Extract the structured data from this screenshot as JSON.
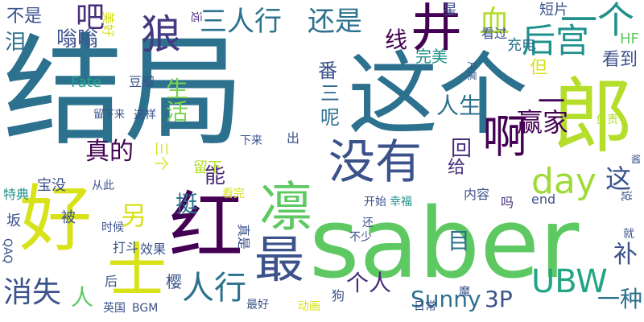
{
  "cloud": {
    "words": [
      {
        "text": "结局",
        "color": "#2c718e"
      },
      {
        "text": "这个",
        "color": "#2c718e"
      },
      {
        "text": "saber",
        "color": "#5ec962"
      },
      {
        "text": "好",
        "color": "#d7e219"
      },
      {
        "text": "红",
        "color": "#440154"
      },
      {
        "text": "郎",
        "color": "#b5de2b"
      },
      {
        "text": "凛",
        "color": "#5ec962"
      },
      {
        "text": "最",
        "color": "#3b528b"
      },
      {
        "text": "士",
        "color": "#d7e219"
      },
      {
        "text": "狼",
        "color": "#443983"
      },
      {
        "text": "没有",
        "color": "#3b528b"
      },
      {
        "text": "啊",
        "color": "#440154"
      },
      {
        "text": "三人行",
        "color": "#2c718e"
      },
      {
        "text": "还是",
        "color": "#2c718e"
      },
      {
        "text": "井",
        "color": "#440154"
      },
      {
        "text": "一个",
        "color": "#21918c"
      },
      {
        "text": "后宫",
        "color": "#21918c"
      },
      {
        "text": "day",
        "color": "#a0da39"
      },
      {
        "text": "人行",
        "color": "#2c718e"
      },
      {
        "text": "UBW",
        "color": "#21a585"
      },
      {
        "text": "Sunny",
        "color": "#2c718e"
      },
      {
        "text": "3P",
        "color": "#3b528b"
      },
      {
        "text": "一种",
        "color": "#2c718e"
      },
      {
        "text": "消失",
        "color": "#3b528b"
      },
      {
        "text": "不是",
        "color": "#3b528b"
      },
      {
        "text": "吧",
        "color": "#472d7b"
      },
      {
        "text": "血",
        "color": "#b5de2b"
      },
      {
        "text": "线",
        "color": "#440154"
      },
      {
        "text": "嗡嗡",
        "color": "#3b528b"
      },
      {
        "text": "番",
        "color": "#3b528b"
      },
      {
        "text": "生活",
        "color": "#7ad151"
      },
      {
        "text": "三",
        "color": "#31688e"
      },
      {
        "text": "呢",
        "color": "#2c718e"
      },
      {
        "text": "人生",
        "color": "#2c718e"
      },
      {
        "text": "赢家",
        "color": "#440154"
      },
      {
        "text": "一",
        "color": "#440154"
      },
      {
        "text": "回",
        "color": "#472d7b"
      },
      {
        "text": "真的",
        "color": "#440154"
      },
      {
        "text": "能",
        "color": "#482878"
      },
      {
        "text": "另",
        "color": "#d7e219"
      },
      {
        "text": "挺",
        "color": "#2c718e"
      },
      {
        "text": "这",
        "color": "#3b528b"
      },
      {
        "text": "目",
        "color": "#2c718e"
      },
      {
        "text": "补",
        "color": "#3b528b"
      },
      {
        "text": "个人",
        "color": "#472d7b"
      },
      {
        "text": "人",
        "color": "#5ec962"
      },
      {
        "text": "泪",
        "color": "#2c718e"
      },
      {
        "text": "看到",
        "color": "#3b528b"
      },
      {
        "text": "完美",
        "color": "#21918c"
      },
      {
        "text": "充电",
        "color": "#2c718e"
      },
      {
        "text": "但",
        "color": "#d7e219"
      },
      {
        "text": "HF",
        "color": "#5ec962"
      },
      {
        "text": "Fate",
        "color": "#21a585"
      },
      {
        "text": "豆瓣",
        "color": "#3b528b"
      },
      {
        "text": "看过",
        "color": "#3b528b"
      },
      {
        "text": "短片",
        "color": "#3b528b"
      },
      {
        "text": "星",
        "color": "#3b528b"
      },
      {
        "text": "美好",
        "color": "#d7e219"
      },
      {
        "text": "远",
        "color": "#472d7b"
      },
      {
        "text": "留下来",
        "color": "#3b528b"
      },
      {
        "text": "这样",
        "color": "#3b528b"
      },
      {
        "text": "下来",
        "color": "#3b528b"
      },
      {
        "text": "出",
        "color": "#3b528b"
      },
      {
        "text": "三个",
        "color": "#d7e219"
      },
      {
        "text": "给",
        "color": "#472d7b"
      },
      {
        "text": "留下",
        "color": "#b5de2b"
      },
      {
        "text": "看完",
        "color": "#d7e219"
      },
      {
        "text": "宝没",
        "color": "#3b528b"
      },
      {
        "text": "特典",
        "color": "#21918c"
      },
      {
        "text": "从此",
        "color": "#3b528b"
      },
      {
        "text": "开始",
        "color": "#3b528b"
      },
      {
        "text": "幸福",
        "color": "#21918c"
      },
      {
        "text": "内容",
        "color": "#3b528b"
      },
      {
        "text": "吗",
        "color": "#472d7b"
      },
      {
        "text": "end",
        "color": "#3b528b"
      },
      {
        "text": "坂",
        "color": "#3b528b"
      },
      {
        "text": "被",
        "color": "#3b528b"
      },
      {
        "text": "时候",
        "color": "#3b528b"
      },
      {
        "text": "还",
        "color": "#3b528b"
      },
      {
        "text": "不少",
        "color": "#3b528b"
      },
      {
        "text": "真是",
        "color": "#3b528b"
      },
      {
        "text": "打斗",
        "color": "#3b528b"
      },
      {
        "text": "效果",
        "color": "#3b528b"
      },
      {
        "text": "QAQ",
        "color": "#3b528b"
      },
      {
        "text": "后",
        "color": "#3b528b"
      },
      {
        "text": "樱",
        "color": "#3b528b"
      },
      {
        "text": "英国",
        "color": "#3b528b"
      },
      {
        "text": "BGM",
        "color": "#3b528b"
      },
      {
        "text": "最好",
        "color": "#3b528b"
      },
      {
        "text": "动画",
        "color": "#d7e219"
      },
      {
        "text": "狗",
        "color": "#3b528b"
      },
      {
        "text": "日常",
        "color": "#3b528b"
      },
      {
        "text": "就",
        "color": "#3b528b"
      },
      {
        "text": "说",
        "color": "#3b528b"
      },
      {
        "text": "负责",
        "color": "#b5de2b"
      },
      {
        "text": "酱",
        "color": "#3b528b"
      },
      {
        "text": "片尾",
        "color": "#3b528b"
      },
      {
        "text": "魔",
        "color": "#3b528b"
      }
    ]
  }
}
